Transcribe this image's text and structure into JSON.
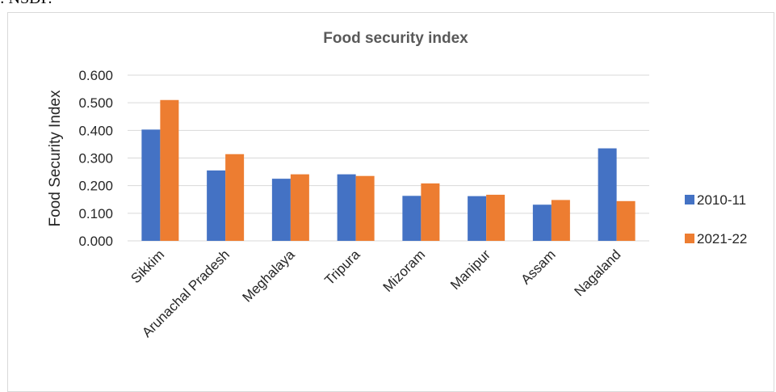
{
  "header_fragment": ": NSDP.",
  "colors": {
    "series_2010_11": "#4472c4",
    "series_2021_22": "#ed7d31",
    "gridline": "#d9d9d9",
    "title": "#595959",
    "text": "#262626"
  },
  "chart_data": {
    "type": "bar",
    "title": "Food security index",
    "xlabel": "",
    "ylabel": "Food Security Index",
    "categories": [
      "Sikkim",
      "Arunachal Pradesh",
      "Meghalaya",
      "Tripura",
      "Mizoram",
      "Manipur",
      "Assam",
      "Nagaland"
    ],
    "series": [
      {
        "name": "2010-11",
        "values": [
          0.403,
          0.255,
          0.225,
          0.241,
          0.163,
          0.162,
          0.131,
          0.335
        ]
      },
      {
        "name": "2021-22",
        "values": [
          0.51,
          0.314,
          0.241,
          0.235,
          0.208,
          0.167,
          0.148,
          0.144
        ]
      }
    ],
    "ylim": [
      0,
      0.6
    ],
    "yticks": [
      "0.000",
      "0.100",
      "0.200",
      "0.300",
      "0.400",
      "0.500",
      "0.600"
    ],
    "grid": true,
    "legend_position": "right"
  }
}
